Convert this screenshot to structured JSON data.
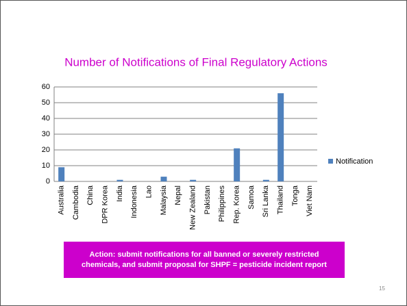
{
  "chart_data": {
    "type": "bar",
    "title": "Number of Notifications of Final Regulatory Actions",
    "categories": [
      "Australia",
      "Cambodia",
      "China",
      "DPR Korea",
      "India",
      "Indonesia",
      "Lao",
      "Malaysia",
      "Nepal",
      "New Zealand",
      "Pakistan",
      "Philippines",
      "Rep. Korea",
      "Samoa",
      "Sri Lanka",
      "Thailand",
      "Tonga",
      "Viet Nam"
    ],
    "series": [
      {
        "name": "Notification",
        "color": "#4f81bd",
        "values": [
          9,
          0,
          0,
          0,
          1,
          0,
          0,
          3,
          0,
          1,
          0,
          0,
          21,
          0,
          1,
          56,
          0,
          0
        ]
      }
    ],
    "ylim": [
      0,
      60
    ],
    "yticks": [
      0,
      10,
      20,
      30,
      40,
      50,
      60
    ],
    "grid": true,
    "legend": "right"
  },
  "banner": "Action: submit notifications for all banned or severely restricted chemicals, and submit proposal for SHPF = pesticide incident report",
  "page_number": "15"
}
